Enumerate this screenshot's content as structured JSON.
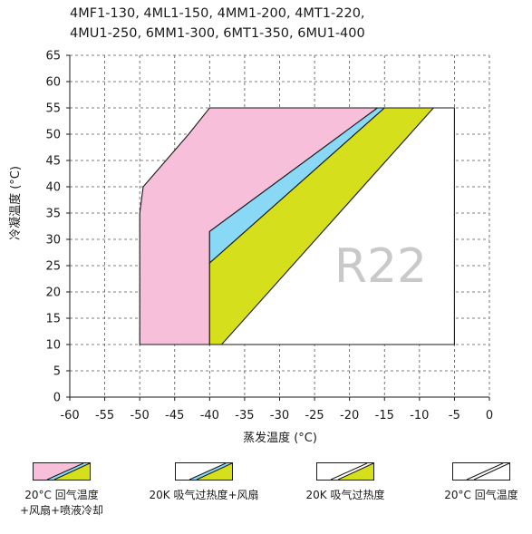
{
  "chart_data": {
    "type": "area",
    "title_lines": [
      "4MF1-130, 4ML1-150, 4MM1-200, 4MT1-220,",
      "4MU1-250, 6MM1-300, 6MT1-350, 6MU1-400"
    ],
    "xlabel": "蒸发温度 (°C)",
    "ylabel": "冷凝温度 (°C)",
    "xlim": [
      -60,
      0
    ],
    "ylim": [
      0,
      65
    ],
    "xticks": [
      -60,
      -55,
      -50,
      -45,
      -40,
      -35,
      -30,
      -25,
      -20,
      -15,
      -10,
      -5,
      0
    ],
    "yticks": [
      0,
      5,
      10,
      15,
      20,
      25,
      30,
      35,
      40,
      45,
      50,
      55,
      60,
      65
    ],
    "grid": true,
    "watermark": "R22",
    "legend_position": "bottom",
    "series": [
      {
        "name": "20°C 回气温度",
        "color": "#ffffff",
        "polygon": [
          [
            -50,
            10
          ],
          [
            -5,
            10
          ],
          [
            -5,
            55
          ],
          [
            -40,
            55
          ],
          [
            -40,
            10
          ]
        ]
      },
      {
        "name": "20°C 回气温度 +风扇+喷液冷却",
        "color": "#f7bfd9",
        "polygon": [
          [
            -50,
            10
          ],
          [
            -40,
            10
          ],
          [
            -40,
            31.5
          ],
          [
            -16,
            55
          ],
          [
            -40,
            55
          ],
          [
            -43,
            50
          ],
          [
            -49.5,
            40
          ],
          [
            -50,
            35
          ]
        ]
      },
      {
        "name": "20K 吸气过热度+风扇",
        "color": "#88d8f6",
        "polygon": [
          [
            -40,
            25.5
          ],
          [
            -15,
            55
          ],
          [
            -16,
            55
          ],
          [
            -40,
            31.5
          ]
        ]
      },
      {
        "name": "20K 吸气过热度",
        "color": "#d5df1c",
        "polygon": [
          [
            -40,
            10
          ],
          [
            -38.3,
            10
          ],
          [
            -8,
            55
          ],
          [
            -15,
            55
          ],
          [
            -40,
            25.5
          ]
        ]
      }
    ]
  },
  "legend": [
    {
      "line1": "20°C 回气温度",
      "line2": "+风扇+喷液冷却",
      "fills": [
        "#f7bfd9",
        "#88d8f6",
        "#d5df1c"
      ]
    },
    {
      "line1": "20K 吸气过热度+风扇",
      "line2": "",
      "fills": [
        "#ffffff",
        "#88d8f6",
        "#d5df1c"
      ]
    },
    {
      "line1": "20K 吸气过热度",
      "line2": "",
      "fills": [
        "#ffffff",
        "#ffffff",
        "#d5df1c"
      ]
    },
    {
      "line1": "20°C 回气温度",
      "line2": "",
      "fills": [
        "#ffffff",
        "#ffffff",
        "#ffffff"
      ]
    }
  ]
}
